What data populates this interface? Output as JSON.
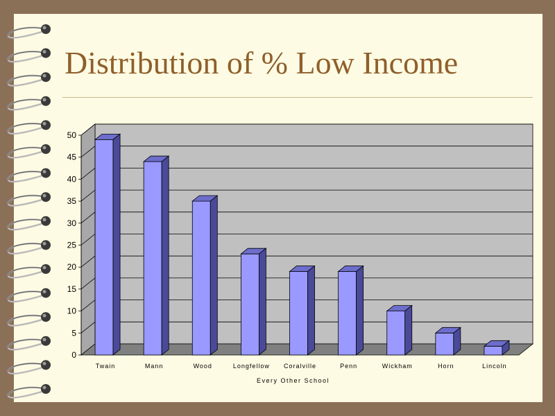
{
  "slide": {
    "title": "Distribution of % Low Income"
  },
  "colors": {
    "background": "#8b7058",
    "page": "#fdfbe3",
    "title": "#8f5f2b",
    "plot_wall": "#c0c0c0",
    "plot_floor": "#808080",
    "bar_front": "#9999ff",
    "bar_top": "#6d6dcc",
    "bar_side": "#4a4a99"
  },
  "chart_data": {
    "type": "bar",
    "categories": [
      "Twain",
      "Mann",
      "Wood",
      "Longfellow",
      "Coralville",
      "Penn",
      "Wickham",
      "Horn",
      "Lincoln"
    ],
    "values": [
      49,
      44,
      35,
      23,
      19,
      19,
      10,
      5,
      2
    ],
    "yticks": [
      "0",
      "5",
      "10",
      "15",
      "20",
      "25",
      "30",
      "35",
      "40",
      "45",
      "50"
    ],
    "xlabel": "Every Other School",
    "ylabel": "",
    "ylim": [
      0,
      50
    ],
    "grid": true,
    "legend": "none",
    "style": "3d-column"
  }
}
